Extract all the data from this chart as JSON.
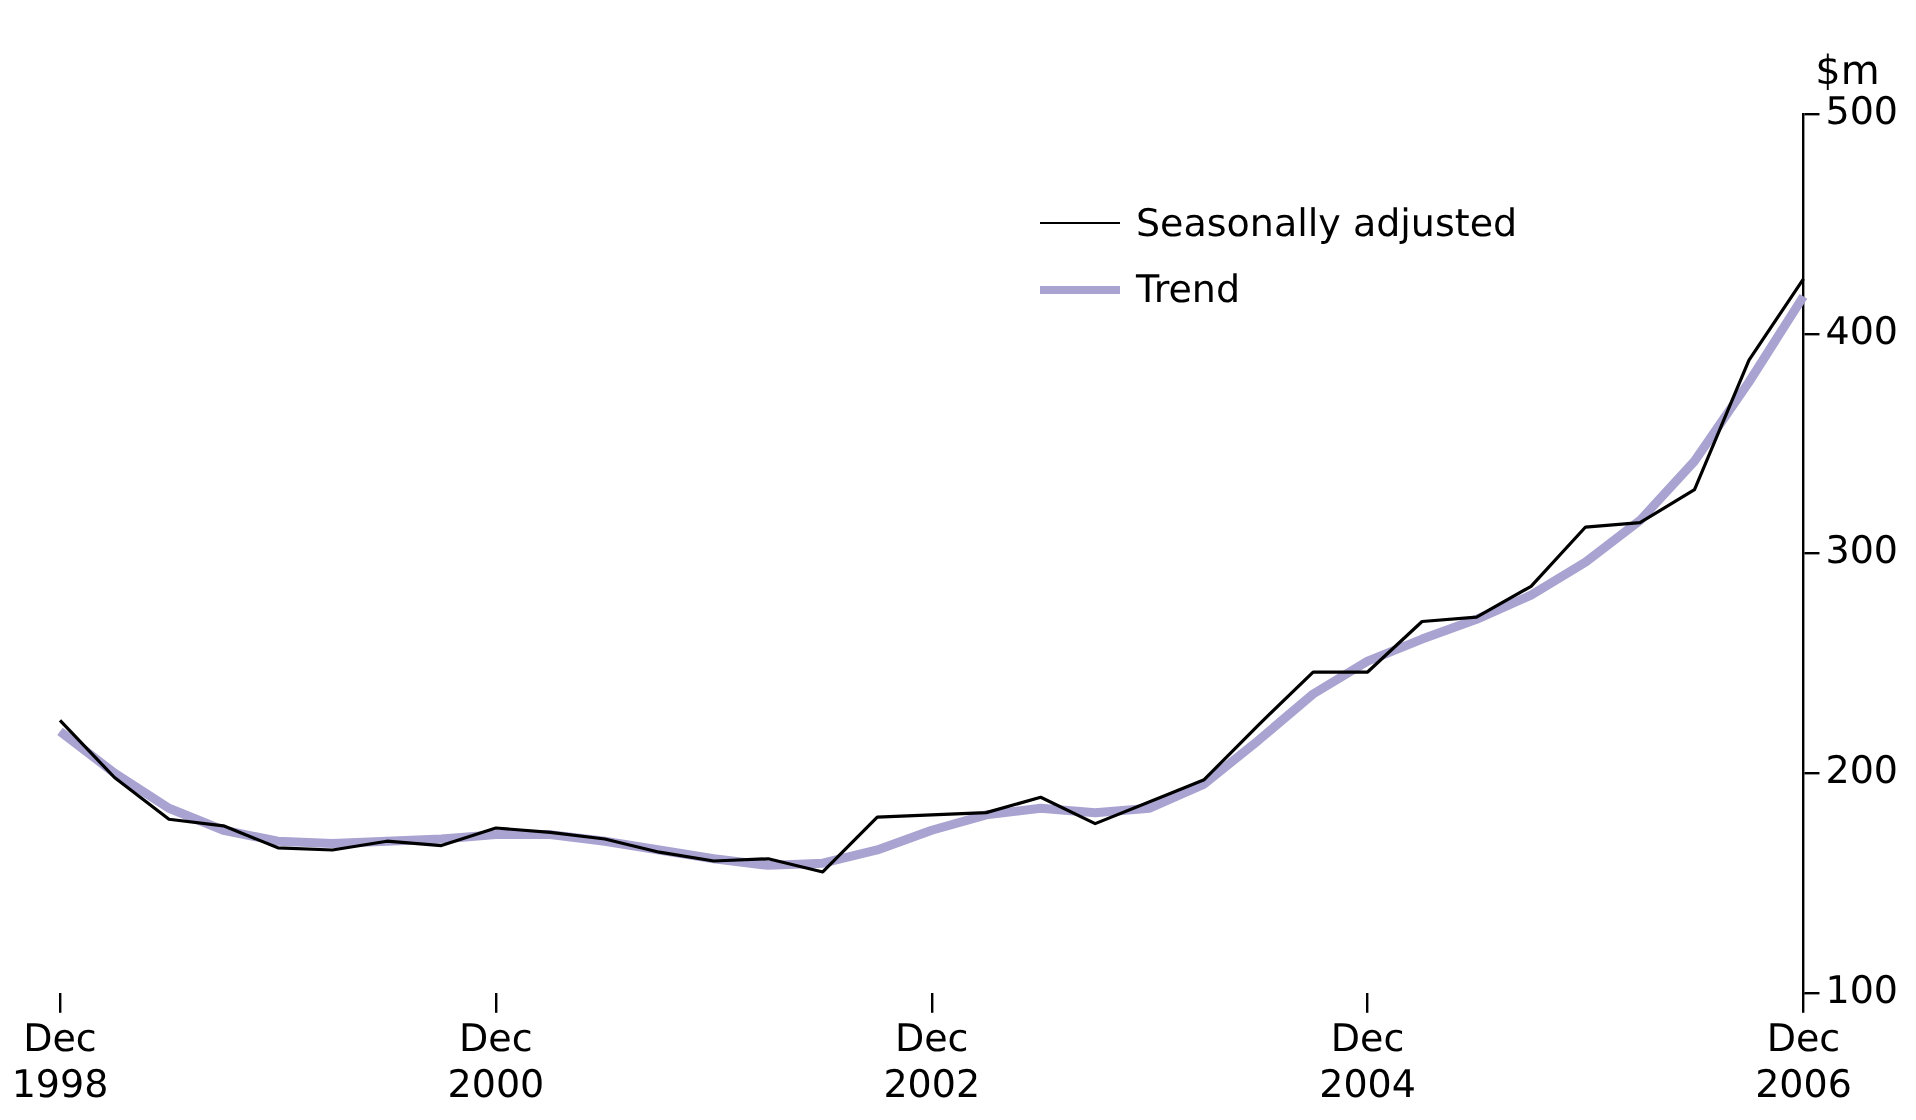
{
  "chart_data": {
    "type": "line",
    "ylabel": "$m",
    "categories": [
      "Dec 1998",
      null,
      null,
      null,
      null,
      null,
      null,
      null,
      "Dec 2000",
      null,
      null,
      null,
      null,
      null,
      null,
      null,
      "Dec 2002",
      null,
      null,
      null,
      null,
      null,
      null,
      null,
      "Dec 2004",
      null,
      null,
      null,
      null,
      null,
      null,
      null,
      "Dec 2006"
    ],
    "series": [
      {
        "name": "Seasonally adjusted",
        "color": "#000000",
        "values": [
          224,
          198,
          179,
          176,
          166,
          165,
          169,
          167,
          175,
          173,
          170,
          164,
          160,
          161,
          155,
          180,
          181,
          182,
          189,
          177,
          187,
          197,
          222,
          246,
          246,
          269,
          271,
          285,
          312,
          314,
          329,
          388,
          425
        ]
      },
      {
        "name": "Trend",
        "color": "#a9a3d1",
        "values": [
          219,
          200,
          184,
          174,
          169,
          168,
          169,
          170,
          172,
          172,
          169,
          165,
          161,
          158,
          159,
          165,
          174,
          181,
          184,
          182,
          184,
          195,
          215,
          236,
          251,
          261,
          270,
          281,
          296,
          315,
          342,
          378,
          417
        ]
      }
    ],
    "ylim": [
      100,
      500
    ],
    "yticks": [
      100,
      200,
      300,
      400,
      500
    ],
    "grid": false,
    "legend": "top right",
    "line_style": "solid",
    "marker": "none"
  }
}
